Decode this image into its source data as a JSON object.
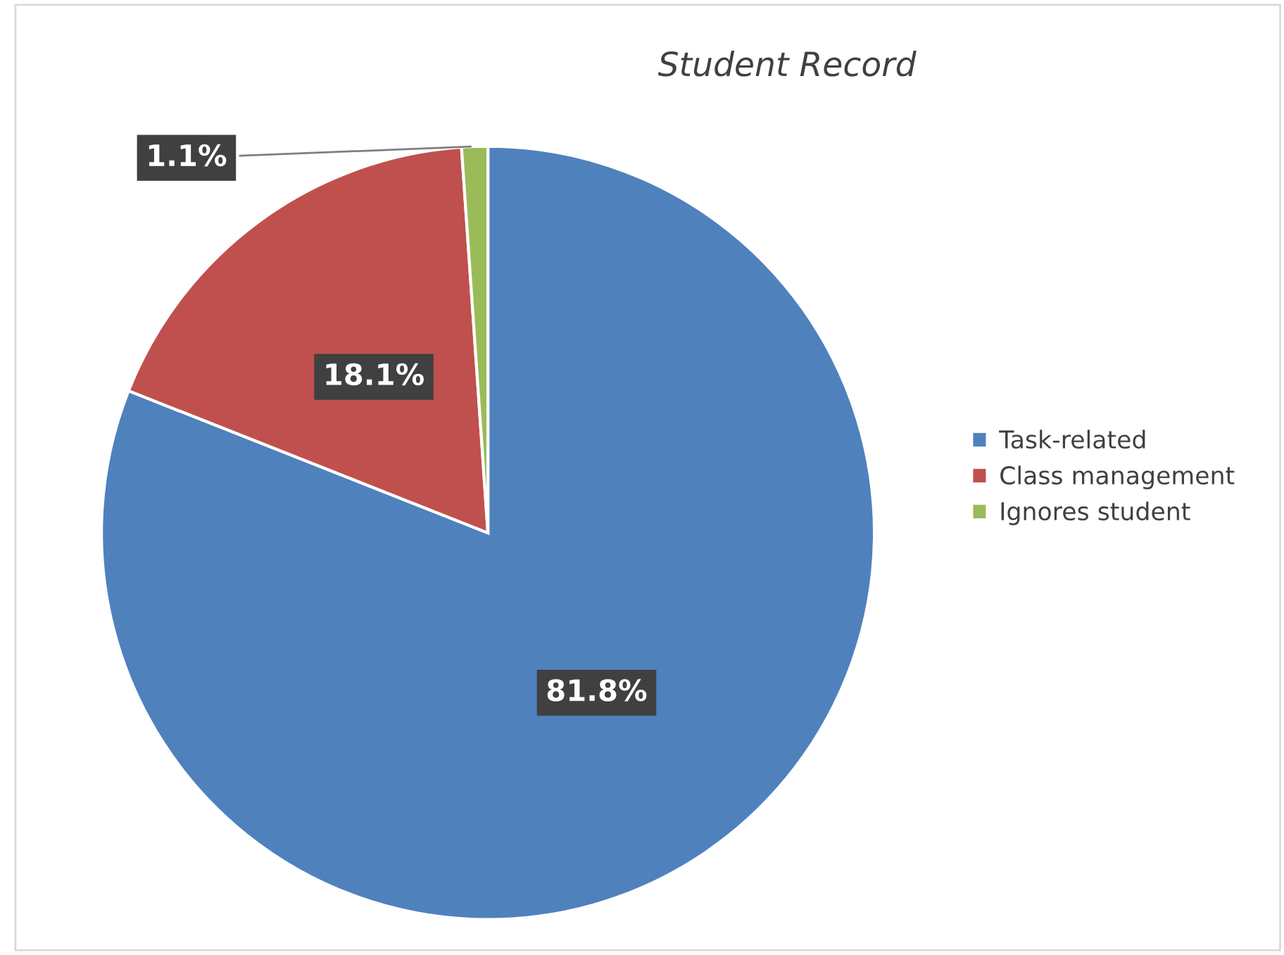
{
  "chart_data": {
    "type": "pie",
    "title": "Student Record",
    "categories": [
      "Task-related",
      "Class management",
      "Ignores student"
    ],
    "values": [
      81.8,
      18.1,
      1.1
    ],
    "colors": [
      "#4f81bd",
      "#c0504d",
      "#9bbb59"
    ],
    "value_labels": [
      "81.8%",
      "18.1%",
      "1.1%"
    ],
    "legend": "right"
  }
}
